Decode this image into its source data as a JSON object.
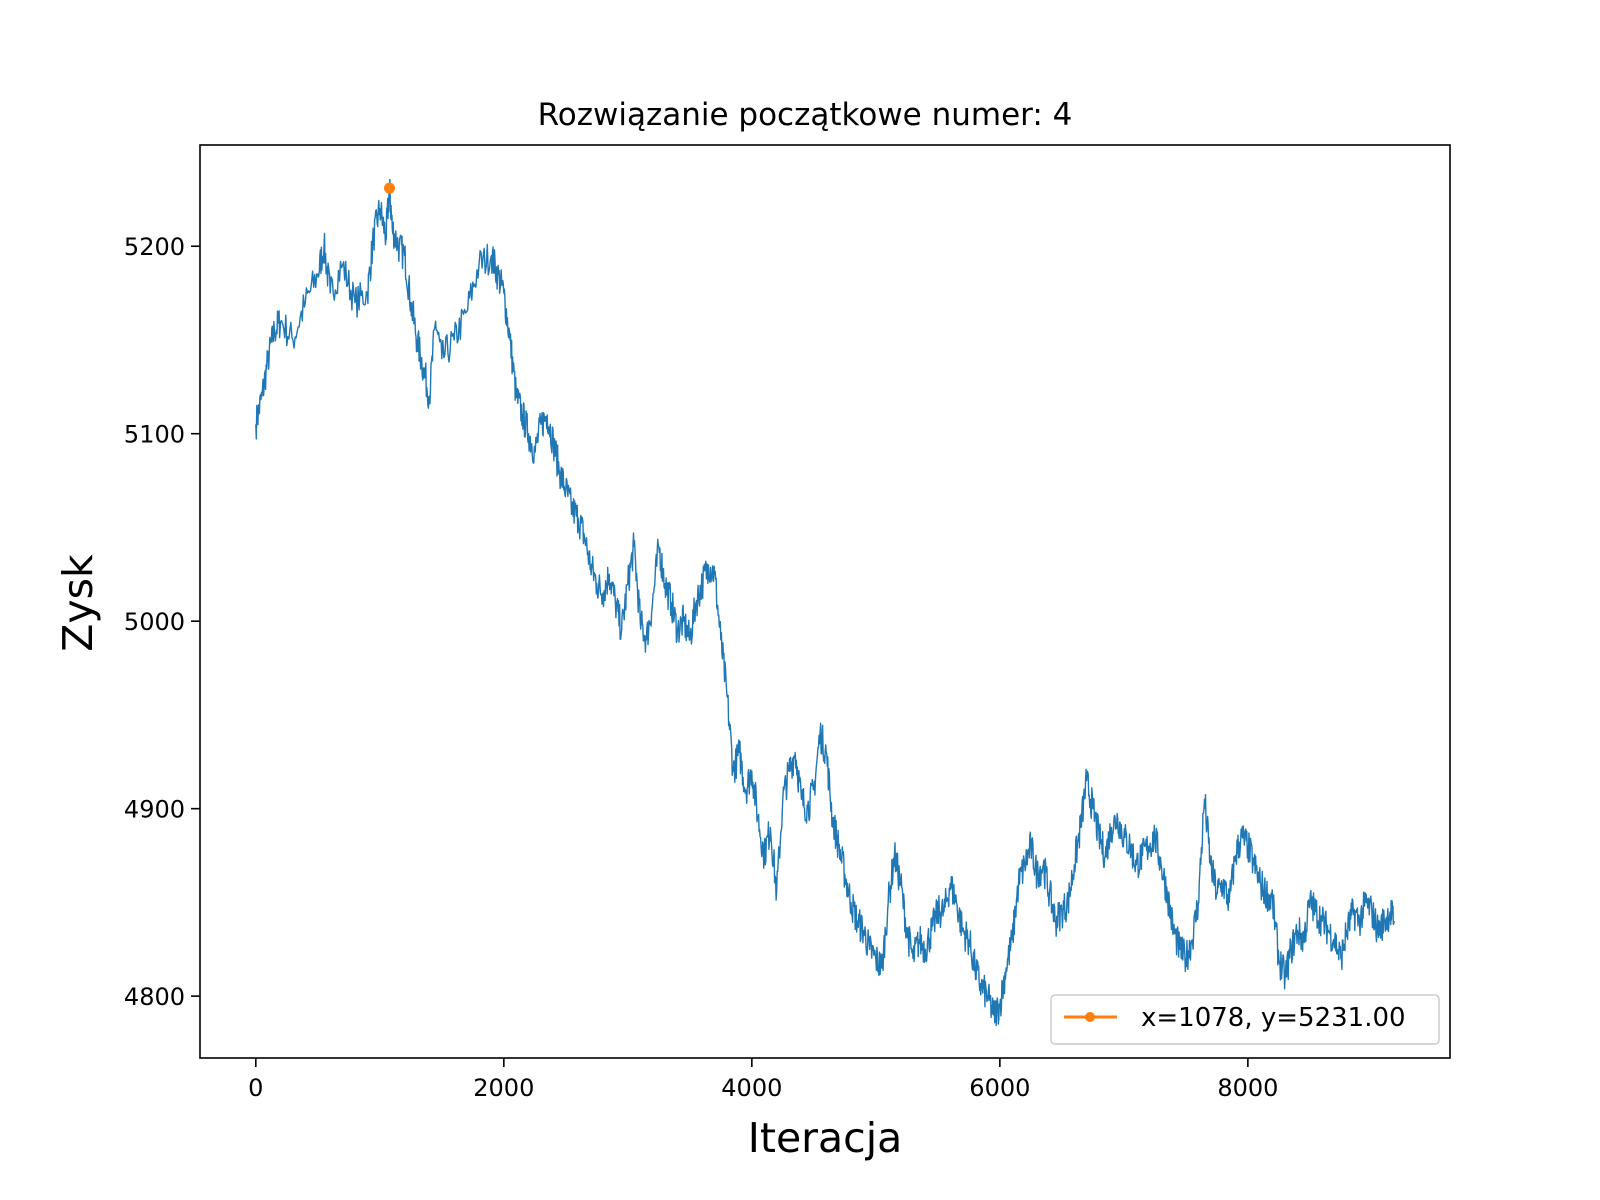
{
  "chart_data": {
    "type": "line",
    "title": "Rozwiązanie początkowe numer: 4",
    "xlabel": "Iteracja",
    "ylabel": "Zysk",
    "xlim": [
      -450,
      9630
    ],
    "ylim": [
      4767,
      5254
    ],
    "x_ticks": [
      0,
      2000,
      4000,
      6000,
      8000
    ],
    "y_ticks": [
      4800,
      4900,
      5000,
      5100,
      5200
    ],
    "grid": false,
    "legend_position": "lower right",
    "colors": {
      "main": "#1f77b4",
      "marker": "#ff7f0e"
    },
    "series": [
      {
        "x": [
          0,
          50,
          100,
          150,
          200,
          300,
          400,
          500,
          550,
          600,
          700,
          800,
          900,
          950,
          1000,
          1050,
          1078,
          1100,
          1150,
          1200,
          1250,
          1300,
          1350,
          1400,
          1450,
          1500,
          1600,
          1700,
          1800,
          1900,
          1950,
          2000,
          2050,
          2100,
          2150,
          2200,
          2250,
          2300,
          2350,
          2400,
          2450,
          2500,
          2550,
          2600,
          2650,
          2700,
          2750,
          2800,
          2850,
          2900,
          2950,
          3000,
          3050,
          3100,
          3150,
          3200,
          3250,
          3300,
          3350,
          3400,
          3450,
          3500,
          3550,
          3600,
          3650,
          3700,
          3750,
          3800,
          3850,
          3900,
          3950,
          4000,
          4050,
          4100,
          4150,
          4200,
          4250,
          4300,
          4350,
          4400,
          4450,
          4500,
          4550,
          4600,
          4650,
          4700,
          4750,
          4800,
          4850,
          4900,
          4950,
          5000,
          5050,
          5100,
          5150,
          5200,
          5250,
          5300,
          5350,
          5400,
          5450,
          5500,
          5550,
          5600,
          5650,
          5700,
          5750,
          5800,
          5850,
          5900,
          5950,
          6000,
          6050,
          6100,
          6150,
          6200,
          6250,
          6300,
          6350,
          6400,
          6450,
          6500,
          6550,
          6600,
          6650,
          6700,
          6750,
          6800,
          6850,
          6900,
          6950,
          7000,
          7050,
          7100,
          7150,
          7200,
          7250,
          7300,
          7350,
          7400,
          7450,
          7500,
          7550,
          7600,
          7650,
          7700,
          7750,
          7800,
          7850,
          7900,
          7950,
          8000,
          8050,
          8100,
          8150,
          8200,
          8250,
          8300,
          8350,
          8400,
          8450,
          8500,
          8550,
          8600,
          8650,
          8700,
          8750,
          8800,
          8850,
          8900,
          8950,
          9000,
          9050,
          9100,
          9150,
          9180
        ],
        "y": [
          5105,
          5120,
          5140,
          5155,
          5160,
          5150,
          5170,
          5185,
          5200,
          5175,
          5190,
          5170,
          5175,
          5205,
          5220,
          5205,
          5231,
          5210,
          5200,
          5195,
          5170,
          5150,
          5135,
          5120,
          5160,
          5140,
          5150,
          5165,
          5190,
          5195,
          5185,
          5175,
          5150,
          5120,
          5110,
          5100,
          5090,
          5105,
          5110,
          5095,
          5080,
          5070,
          5060,
          5055,
          5045,
          5030,
          5020,
          5015,
          5025,
          5010,
          4995,
          5020,
          5040,
          5000,
          4990,
          5010,
          5040,
          5020,
          5010,
          4995,
          5000,
          4990,
          5010,
          5020,
          5030,
          5025,
          4990,
          4960,
          4920,
          4930,
          4910,
          4920,
          4895,
          4875,
          4890,
          4855,
          4905,
          4920,
          4930,
          4905,
          4900,
          4910,
          4940,
          4930,
          4895,
          4880,
          4865,
          4850,
          4840,
          4835,
          4825,
          4820,
          4815,
          4850,
          4875,
          4860,
          4835,
          4820,
          4830,
          4825,
          4835,
          4845,
          4845,
          4860,
          4850,
          4835,
          4830,
          4815,
          4805,
          4800,
          4790,
          4795,
          4815,
          4830,
          4860,
          4870,
          4880,
          4865,
          4870,
          4855,
          4840,
          4845,
          4850,
          4870,
          4890,
          4915,
          4900,
          4885,
          4875,
          4890,
          4895,
          4885,
          4880,
          4870,
          4875,
          4880,
          4885,
          4870,
          4855,
          4835,
          4825,
          4820,
          4830,
          4850,
          4905,
          4870,
          4855,
          4860,
          4850,
          4875,
          4885,
          4880,
          4870,
          4860,
          4855,
          4850,
          4820,
          4810,
          4825,
          4835,
          4830,
          4850,
          4845,
          4840,
          4835,
          4830,
          4820,
          4835,
          4845,
          4840,
          4850,
          4845,
          4835,
          4840,
          4845,
          4840
        ]
      },
      {
        "name": "x=1078, y=5231.00",
        "x": [
          1078
        ],
        "y": [
          5231
        ]
      }
    ]
  }
}
